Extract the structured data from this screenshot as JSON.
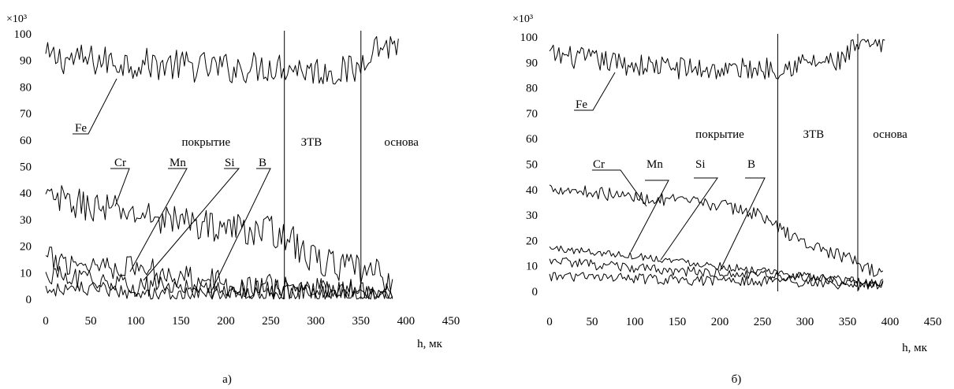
{
  "chart_data": [
    {
      "type": "line",
      "panel_label": "а)",
      "xlabel": "h, мк",
      "ylabel_multiplier": "×10³",
      "xlim": [
        0,
        450
      ],
      "ylim": [
        0,
        100
      ],
      "x_ticks": [
        0,
        50,
        100,
        150,
        200,
        250,
        300,
        350,
        400,
        450
      ],
      "y_ticks": [
        0,
        10,
        20,
        30,
        40,
        50,
        60,
        70,
        80,
        90,
        100
      ],
      "grid": false,
      "zones": [
        {
          "label": "покрытие",
          "x_label": 178
        },
        {
          "label": "ЗТВ",
          "x_label": 295
        },
        {
          "label": "основа",
          "x_label": 395
        }
      ],
      "zone_boundaries": [
        265,
        350
      ],
      "series": [
        {
          "name": "Fe",
          "x_range": [
            0,
            392
          ],
          "profile": [
            [
              0,
              91
            ],
            [
              100,
              89
            ],
            [
              200,
              87
            ],
            [
              265,
              88
            ],
            [
              300,
              86
            ],
            [
              345,
              86
            ],
            [
              360,
              95
            ],
            [
              392,
              96
            ]
          ],
          "noise": 6
        },
        {
          "name": "Cr",
          "x_range": [
            0,
            385
          ],
          "profile": [
            [
              0,
              38
            ],
            [
              100,
              32
            ],
            [
              200,
              27
            ],
            [
              265,
              25
            ],
            [
              290,
              16
            ],
            [
              330,
              12
            ],
            [
              385,
              8
            ]
          ],
          "noise": 6
        },
        {
          "name": "Mn",
          "x_range": [
            0,
            385
          ],
          "profile": [
            [
              0,
              15
            ],
            [
              100,
              12
            ],
            [
              200,
              6
            ],
            [
              265,
              4
            ],
            [
              385,
              2
            ]
          ],
          "noise": 5
        },
        {
          "name": "Si",
          "x_range": [
            0,
            385
          ],
          "profile": [
            [
              0,
              9
            ],
            [
              100,
              5
            ],
            [
              200,
              4
            ],
            [
              265,
              4
            ],
            [
              385,
              2
            ]
          ],
          "noise": 4
        },
        {
          "name": "B",
          "x_range": [
            0,
            385
          ],
          "profile": [
            [
              0,
              4
            ],
            [
              100,
              3
            ],
            [
              200,
              2
            ],
            [
              265,
              3
            ],
            [
              385,
              1
            ]
          ],
          "noise": 3
        }
      ],
      "series_labels": [
        {
          "name": "Fe",
          "x": 35,
          "y": 59
        },
        {
          "name": "Cr",
          "x": 100,
          "y": 49
        },
        {
          "name": "Mn",
          "x": 160,
          "y": 49
        },
        {
          "name": "Si",
          "x": 215,
          "y": 49
        },
        {
          "name": "B",
          "x": 260,
          "y": 49
        }
      ]
    },
    {
      "type": "line",
      "panel_label": "б)",
      "xlabel": "h, мк",
      "ylabel_multiplier": "×10³",
      "xlim": [
        0,
        450
      ],
      "ylim": [
        0,
        100
      ],
      "x_ticks": [
        0,
        50,
        100,
        150,
        200,
        250,
        300,
        350,
        400,
        450
      ],
      "y_ticks": [
        0,
        10,
        20,
        30,
        40,
        50,
        60,
        70,
        80,
        90,
        100
      ],
      "grid": false,
      "zones": [
        {
          "label": "покрытие",
          "x_label": 200
        },
        {
          "label": "ЗТВ",
          "x_label": 310
        },
        {
          "label": "основа",
          "x_label": 400
        }
      ],
      "zone_boundaries": [
        268,
        362
      ],
      "series": [
        {
          "name": "Fe",
          "x_range": [
            0,
            395
          ],
          "profile": [
            [
              0,
              93
            ],
            [
              100,
              89
            ],
            [
              200,
              87
            ],
            [
              268,
              88
            ],
            [
              300,
              90
            ],
            [
              340,
              90
            ],
            [
              360,
              96
            ],
            [
              395,
              97
            ]
          ],
          "noise": 4.5
        },
        {
          "name": "Cr",
          "x_range": [
            0,
            392
          ],
          "profile": [
            [
              0,
              41
            ],
            [
              100,
              37
            ],
            [
              200,
              34
            ],
            [
              250,
              30
            ],
            [
              268,
              25
            ],
            [
              300,
              19
            ],
            [
              350,
              13
            ],
            [
              392,
              6
            ]
          ],
          "noise": 2.5
        },
        {
          "name": "Mn",
          "x_range": [
            0,
            392
          ],
          "profile": [
            [
              0,
              17
            ],
            [
              100,
              14
            ],
            [
              200,
              10
            ],
            [
              268,
              7
            ],
            [
              392,
              3
            ]
          ],
          "noise": 1.5
        },
        {
          "name": "Si",
          "x_range": [
            0,
            392
          ],
          "profile": [
            [
              0,
              12
            ],
            [
              100,
              9
            ],
            [
              200,
              7
            ],
            [
              268,
              6
            ],
            [
              392,
              3
            ]
          ],
          "noise": 2
        },
        {
          "name": "B",
          "x_range": [
            0,
            392
          ],
          "profile": [
            [
              0,
              6
            ],
            [
              100,
              5
            ],
            [
              200,
              4
            ],
            [
              268,
              4
            ],
            [
              392,
              2
            ]
          ],
          "noise": 2
        }
      ],
      "series_labels": [
        {
          "name": "Fe",
          "x": 10,
          "y": 59
        },
        {
          "name": "Cr",
          "x": 80,
          "y": 40
        },
        {
          "name": "Mn",
          "x": 135,
          "y": 40
        },
        {
          "name": "Si",
          "x": 195,
          "y": 40
        },
        {
          "name": "B",
          "x": 262,
          "y": 40
        }
      ]
    }
  ]
}
